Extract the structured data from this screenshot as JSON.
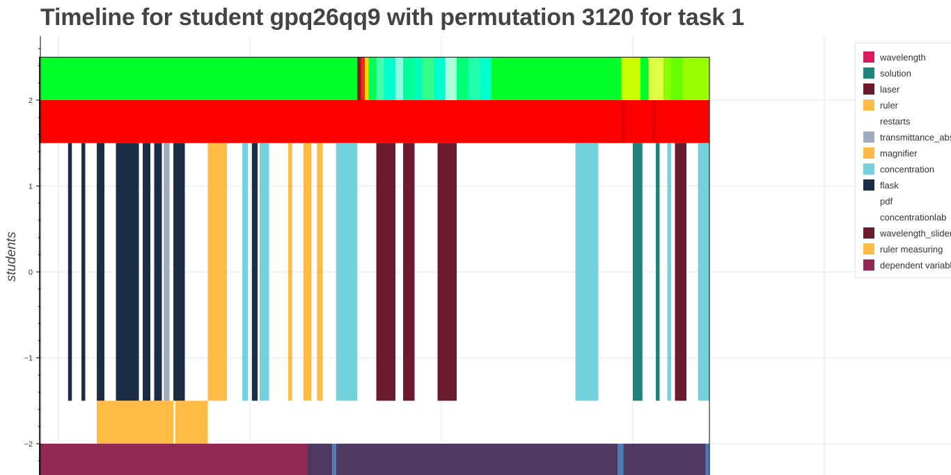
{
  "chart_data": {
    "type": "timeline",
    "title": "Timeline for student gpq26qq9 with permutation 3120 for task 1",
    "ylabel": "students",
    "xlabel": "",
    "ylim": [
      -2.38,
      2.75
    ],
    "y_ticks": [
      2,
      1,
      0,
      -1,
      -2
    ],
    "y_tick_labels": [
      "2",
      "1",
      "0",
      "−1",
      "−2"
    ],
    "x_grid_values": [
      0,
      1,
      2,
      3,
      4
    ],
    "xlim": [
      -0.1,
      3.75
    ],
    "grid": true,
    "legend_position": "top-right",
    "legend": [
      {
        "label": "wavelength",
        "color": "#d81b60"
      },
      {
        "label": "solution",
        "color": "#20837b"
      },
      {
        "label": "laser",
        "color": "#6b1a30"
      },
      {
        "label": "ruler",
        "color": "#ffbb44"
      },
      {
        "label": "restarts",
        "color": "#ffffff"
      },
      {
        "label": "transmittance_absorbance",
        "color": "#9eacbe"
      },
      {
        "label": "magnifier",
        "color": "#ffbb44"
      },
      {
        "label": "concentration",
        "color": "#74d2dd"
      },
      {
        "label": "flask",
        "color": "#1b2e45"
      },
      {
        "label": "pdf",
        "color": "#ffffff"
      },
      {
        "label": "concentrationlab",
        "color": "#ffffff"
      },
      {
        "label": "wavelength_slider",
        "color": "#6b1a30"
      },
      {
        "label": "ruler measuring",
        "color": "#ffbb44"
      },
      {
        "label": "dependent variable",
        "color": "#902a55"
      }
    ],
    "rows": [
      {
        "y_range": [
          2,
          2.5
        ],
        "segments": [
          {
            "start": -0.1,
            "end": 1.56,
            "color": "#00ff2a"
          },
          {
            "start": 1.56,
            "end": 1.58,
            "color": "#8b1a1a"
          },
          {
            "start": 1.58,
            "end": 1.6,
            "color": "#ff2222"
          },
          {
            "start": 1.6,
            "end": 1.62,
            "color": "#ffd500"
          },
          {
            "start": 1.62,
            "end": 1.66,
            "color": "#00ff55"
          },
          {
            "start": 1.66,
            "end": 1.7,
            "color": "#44ffaa"
          },
          {
            "start": 1.7,
            "end": 1.76,
            "color": "#00ffcc"
          },
          {
            "start": 1.76,
            "end": 1.8,
            "color": "#88ffe0"
          },
          {
            "start": 1.8,
            "end": 1.86,
            "color": "#00ff99"
          },
          {
            "start": 1.86,
            "end": 1.9,
            "color": "#00ffbb"
          },
          {
            "start": 1.9,
            "end": 1.96,
            "color": "#33ff88"
          },
          {
            "start": 1.96,
            "end": 2.02,
            "color": "#00ffcc"
          },
          {
            "start": 2.02,
            "end": 2.08,
            "color": "#aaffdd"
          },
          {
            "start": 2.08,
            "end": 2.14,
            "color": "#00ff77"
          },
          {
            "start": 2.14,
            "end": 2.2,
            "color": "#22ffaa"
          },
          {
            "start": 2.2,
            "end": 2.26,
            "color": "#00ffcc"
          },
          {
            "start": 2.26,
            "end": 2.94,
            "color": "#00ff2a"
          },
          {
            "start": 2.94,
            "end": 3.04,
            "color": "#ccff00"
          },
          {
            "start": 3.04,
            "end": 3.08,
            "color": "#00ff2a"
          },
          {
            "start": 3.08,
            "end": 3.16,
            "color": "#ddff44"
          },
          {
            "start": 3.16,
            "end": 3.2,
            "color": "#88ff00"
          },
          {
            "start": 3.2,
            "end": 3.26,
            "color": "#66ff00"
          },
          {
            "start": 3.26,
            "end": 3.4,
            "color": "#99ff00"
          }
        ]
      },
      {
        "y_range": [
          1.5,
          2
        ],
        "segments": [
          {
            "start": -0.1,
            "end": 2.94,
            "color": "#ff0000"
          },
          {
            "start": 2.94,
            "end": 2.96,
            "color": "#e40000"
          },
          {
            "start": 2.96,
            "end": 3.1,
            "color": "#ff0000"
          },
          {
            "start": 3.1,
            "end": 3.12,
            "color": "#e40000"
          },
          {
            "start": 3.12,
            "end": 3.4,
            "color": "#ff0000"
          }
        ]
      },
      {
        "y_range": [
          -1.5,
          1.5
        ],
        "segments": [
          {
            "start": 0.05,
            "end": 0.07,
            "color": "#1b2e45"
          },
          {
            "start": 0.12,
            "end": 0.14,
            "color": "#1b2e45"
          },
          {
            "start": 0.2,
            "end": 0.24,
            "color": "#1b2e45"
          },
          {
            "start": 0.3,
            "end": 0.42,
            "color": "#1b2e45"
          },
          {
            "start": 0.44,
            "end": 0.48,
            "color": "#1b2e45"
          },
          {
            "start": 0.5,
            "end": 0.54,
            "color": "#1b2e45"
          },
          {
            "start": 0.55,
            "end": 0.58,
            "color": "#9eacbe"
          },
          {
            "start": 0.6,
            "end": 0.66,
            "color": "#1b2e45"
          },
          {
            "start": 0.78,
            "end": 0.88,
            "color": "#ffbb44"
          },
          {
            "start": 0.96,
            "end": 0.99,
            "color": "#74d2dd"
          },
          {
            "start": 1.01,
            "end": 1.04,
            "color": "#1b2e45"
          },
          {
            "start": 1.05,
            "end": 1.1,
            "color": "#74d2dd"
          },
          {
            "start": 1.2,
            "end": 1.22,
            "color": "#ffbb44"
          },
          {
            "start": 1.28,
            "end": 1.32,
            "color": "#ffbb44"
          },
          {
            "start": 1.35,
            "end": 1.38,
            "color": "#ffbb44"
          },
          {
            "start": 1.45,
            "end": 1.56,
            "color": "#74d2dd"
          },
          {
            "start": 1.66,
            "end": 1.76,
            "color": "#6b1a30"
          },
          {
            "start": 1.8,
            "end": 1.86,
            "color": "#6b1a30"
          },
          {
            "start": 1.98,
            "end": 2.08,
            "color": "#6b1a30"
          },
          {
            "start": 2.7,
            "end": 2.82,
            "color": "#74d2dd"
          },
          {
            "start": 3.0,
            "end": 3.05,
            "color": "#20837b"
          },
          {
            "start": 3.12,
            "end": 3.14,
            "color": "#20837b"
          },
          {
            "start": 3.18,
            "end": 3.2,
            "color": "#74d2dd"
          },
          {
            "start": 3.22,
            "end": 3.28,
            "color": "#6b1a30"
          },
          {
            "start": 3.34,
            "end": 3.4,
            "color": "#74d2dd"
          }
        ]
      },
      {
        "y_range": [
          -2,
          -1.5
        ],
        "segments": [
          {
            "start": 0.2,
            "end": 0.6,
            "color": "#ffbb44"
          },
          {
            "start": 0.61,
            "end": 0.78,
            "color": "#ffbb44"
          }
        ]
      },
      {
        "y_range": [
          -2.38,
          -2
        ],
        "segments": [
          {
            "start": -0.1,
            "end": 1.3,
            "color": "#902a55"
          },
          {
            "start": 1.3,
            "end": 1.43,
            "color": "#4f3862"
          },
          {
            "start": 1.43,
            "end": 1.45,
            "color": "#4c7cb8"
          },
          {
            "start": 1.45,
            "end": 2.92,
            "color": "#4f3862"
          },
          {
            "start": 2.92,
            "end": 2.95,
            "color": "#4c7cb8"
          },
          {
            "start": 2.95,
            "end": 3.38,
            "color": "#4f3862"
          },
          {
            "start": 3.38,
            "end": 3.4,
            "color": "#4c7cb8"
          }
        ]
      }
    ]
  }
}
